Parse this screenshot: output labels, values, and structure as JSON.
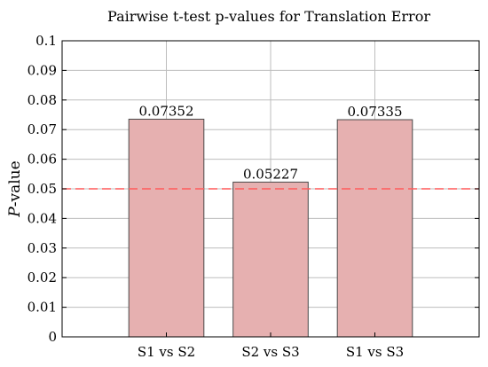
{
  "chart_data": {
    "type": "bar",
    "title": "Pairwise t-test p-values for Translation Error",
    "xlabel": "",
    "ylabel": "P-value",
    "ylabel_italic_part": "P",
    "ylabel_rest": "-value",
    "categories": [
      "S1 vs S2",
      "S2 vs S3",
      "S1 vs S3"
    ],
    "values": [
      0.07352,
      0.05227,
      0.07335
    ],
    "data_labels": [
      "0.07352",
      "0.05227",
      "0.07335"
    ],
    "ylim": [
      0,
      0.1
    ],
    "yticks": [
      0,
      0.01,
      0.02,
      0.03,
      0.04,
      0.05,
      0.06,
      0.07,
      0.08,
      0.09,
      0.1
    ],
    "ytick_labels": [
      "0",
      "0.01",
      "0.02",
      "0.03",
      "0.04",
      "0.05",
      "0.06",
      "0.07",
      "0.08",
      "0.09",
      "0.1"
    ],
    "reference_line": {
      "value": 0.05,
      "style": "dashed",
      "color": "#ff5a5a"
    },
    "bar_color": "#e6b0b0",
    "grid": true,
    "legend": "none"
  }
}
